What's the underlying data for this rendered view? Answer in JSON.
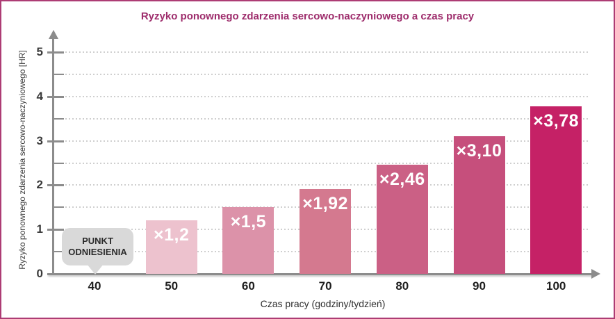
{
  "chart_data": {
    "type": "bar",
    "title": "Ryzyko ponownego zdarzenia sercowo-naczyniowego a czas pracy",
    "xlabel": "Czas pracy (godziny/tydzień)",
    "ylabel": "Ryzyko ponownego zdarzenia sercowo-naczyniowego [HR]",
    "categories": [
      "40",
      "50",
      "60",
      "70",
      "80",
      "90",
      "100"
    ],
    "values": [
      null,
      1.2,
      1.5,
      1.92,
      2.46,
      3.1,
      3.78
    ],
    "bar_labels": [
      "",
      "×1,2",
      "×1,5",
      "×1,92",
      "×2,46",
      "×3,10",
      "×3,78"
    ],
    "bar_colors": [
      null,
      "#edc2ce",
      "#dc92a9",
      "#d4798f",
      "#cb6085",
      "#c64f7c",
      "#c52166"
    ],
    "ylim": [
      0,
      5.5
    ],
    "yticks_major": [
      0,
      1,
      2,
      3,
      4,
      5
    ],
    "ytick_labels": [
      "0",
      "1",
      "2",
      "3",
      "4",
      "5"
    ],
    "yticks_minor": [
      0.5,
      1.5,
      2.5,
      3.5,
      4.5
    ],
    "grid": "horizontal dotted lines every 0.5",
    "legend_position": "none",
    "annotation": {
      "category": "40",
      "line1": "PUNKT",
      "line2": "ODNIESIENIA",
      "meaning": "reference point, no bar drawn at 40 h/week"
    }
  },
  "frame": {
    "border_color": "#ad3c74",
    "title_color": "#9e2d6c",
    "axis_color": "#8c8c8c"
  }
}
